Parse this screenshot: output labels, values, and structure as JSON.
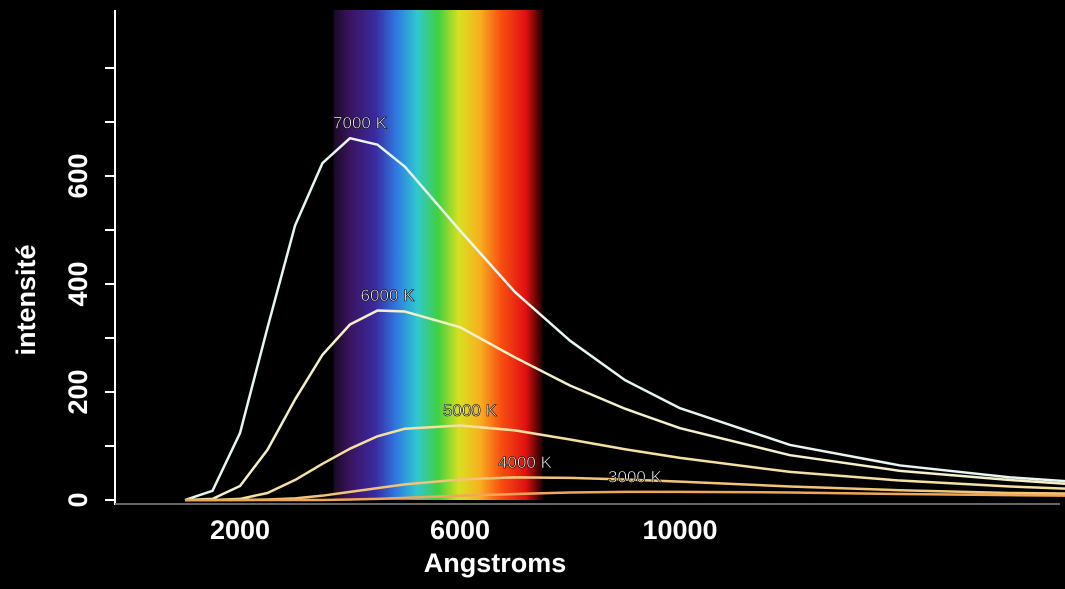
{
  "chart_data": {
    "type": "line",
    "xlabel": "Angstroms",
    "ylabel": "intensité",
    "x": [
      1000,
      1500,
      2000,
      2500,
      3000,
      3500,
      4000,
      4500,
      5000,
      6000,
      7000,
      8000,
      9000,
      10000,
      12000,
      14000,
      16000,
      17000
    ],
    "series": [
      {
        "name": "7000 K",
        "color": "#e6f6f0",
        "values": [
          0,
          17,
          124,
          319,
          508,
          624,
          670,
          658,
          617,
          499,
          385,
          295,
          222,
          170,
          102,
          64,
          42,
          35
        ]
      },
      {
        "name": "6000 K",
        "color": "#f4f0c8",
        "values": [
          0,
          2,
          26,
          93,
          186,
          269,
          325,
          351,
          349,
          320,
          264,
          212,
          169,
          133,
          83,
          54,
          37,
          30
        ]
      },
      {
        "name": "5000 K",
        "color": "#f6e0a0",
        "values": [
          0,
          0,
          2,
          13,
          37,
          67,
          95,
          118,
          132,
          138,
          129,
          112,
          94,
          78,
          52,
          36,
          25,
          21
        ]
      },
      {
        "name": "4000 K",
        "color": "#f2c478",
        "values": [
          0,
          0,
          0,
          1,
          3,
          8,
          15,
          22,
          29,
          38,
          42,
          41,
          38,
          34,
          25,
          18,
          13,
          12
        ]
      },
      {
        "name": "3000 K",
        "color": "#f0a858",
        "values": [
          0,
          0,
          0,
          0,
          0,
          0,
          1,
          2,
          4,
          8,
          11,
          14,
          15,
          15,
          14,
          11,
          9,
          8
        ]
      }
    ],
    "xlim": [
      -300,
      17000
    ],
    "xticks": [
      2000,
      6000,
      10000
    ],
    "ylim": [
      0,
      900
    ],
    "yticks": [
      0,
      200,
      400,
      600
    ],
    "minor_yticks": [
      100,
      300,
      500,
      700,
      800
    ],
    "spectrum_range": [
      3700,
      7500
    ]
  }
}
